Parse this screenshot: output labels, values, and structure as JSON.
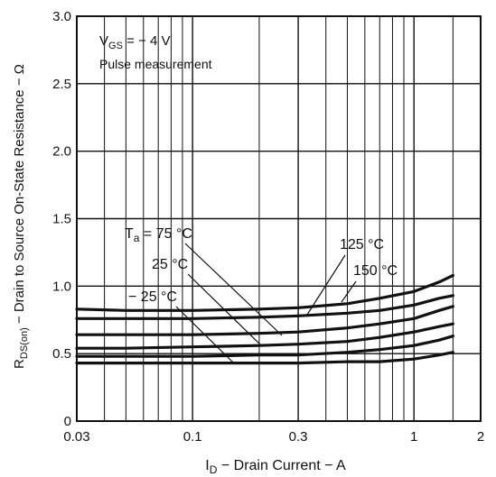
{
  "chart_data": {
    "type": "line",
    "xscale": "log",
    "xlim": [
      0.03,
      2
    ],
    "ylim": [
      0,
      3.0
    ],
    "grid": true,
    "xticks": [
      0.03,
      0.1,
      0.3,
      1,
      2
    ],
    "xtick_labels": [
      "0.03",
      "0.1",
      "0.3",
      "1",
      "2"
    ],
    "yticks": [
      0,
      0.5,
      1.0,
      1.5,
      2.0,
      2.5,
      3.0
    ],
    "ytick_labels": [
      "0",
      "0.5",
      "1.0",
      "1.5",
      "2.0",
      "2.5",
      "3.0"
    ],
    "xlabel": {
      "sym": "I",
      "sub": "D",
      "rest": " − Drain Current − A"
    },
    "ylabel": {
      "sym": "R",
      "sub": "DS(on)",
      "rest": " − Drain to Source On-State Resistance − Ω"
    },
    "conditions": {
      "vgs": {
        "sym": "V",
        "sub": "GS",
        "rest": " = − 4 V"
      },
      "pulse": "Pulse measurement"
    },
    "annotations": {
      "ta": {
        "sym": "T",
        "sub": "a",
        "rest": " = 75 °C"
      },
      "t25": "25 °C",
      "tm25": "− 25 °C",
      "t125": "125 °C",
      "t150": "150 °C"
    },
    "series": [
      {
        "x": [
          0.03,
          0.05,
          0.1,
          0.2,
          0.3,
          0.5,
          0.7,
          1.0,
          1.3,
          1.5
        ],
        "y": [
          0.43,
          0.43,
          0.43,
          0.43,
          0.43,
          0.44,
          0.44,
          0.46,
          0.49,
          0.51
        ]
      },
      {
        "x": [
          0.03,
          0.05,
          0.1,
          0.2,
          0.3,
          0.5,
          0.7,
          1.0,
          1.3,
          1.5
        ],
        "y": [
          0.48,
          0.48,
          0.48,
          0.49,
          0.49,
          0.51,
          0.53,
          0.56,
          0.6,
          0.63
        ]
      },
      {
        "x": [
          0.03,
          0.05,
          0.1,
          0.2,
          0.3,
          0.5,
          0.7,
          1.0,
          1.3,
          1.5
        ],
        "y": [
          0.54,
          0.54,
          0.55,
          0.56,
          0.57,
          0.59,
          0.62,
          0.66,
          0.7,
          0.72
        ]
      },
      {
        "x": [
          0.03,
          0.05,
          0.1,
          0.2,
          0.3,
          0.5,
          0.7,
          1.0,
          1.3,
          1.5
        ],
        "y": [
          0.64,
          0.64,
          0.64,
          0.65,
          0.66,
          0.69,
          0.72,
          0.76,
          0.82,
          0.85
        ]
      },
      {
        "x": [
          0.03,
          0.05,
          0.1,
          0.2,
          0.3,
          0.5,
          0.7,
          1.0,
          1.3,
          1.5
        ],
        "y": [
          0.76,
          0.76,
          0.76,
          0.77,
          0.78,
          0.8,
          0.82,
          0.86,
          0.91,
          0.93
        ]
      },
      {
        "x": [
          0.03,
          0.05,
          0.1,
          0.2,
          0.3,
          0.5,
          0.7,
          1.0,
          1.3,
          1.5
        ],
        "y": [
          0.83,
          0.82,
          0.82,
          0.83,
          0.84,
          0.87,
          0.91,
          0.96,
          1.03,
          1.08
        ]
      }
    ]
  }
}
